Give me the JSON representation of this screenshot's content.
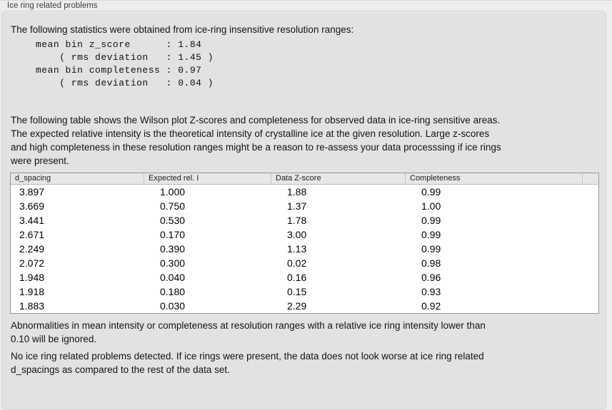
{
  "panel": {
    "title": "Ice ring related problems"
  },
  "colors": {
    "page_bg": "#ededed",
    "panel_bg": "#e2e2e2",
    "table_bg": "#ffffff",
    "table_border": "#979797",
    "header_bg": "#e7e7e7"
  },
  "sections": {
    "intro": "The following statistics were obtained from ice-ring insensitive resolution ranges:",
    "stats_lines": [
      "mean bin z_score      : 1.84",
      "    ( rms deviation   : 1.45 )",
      "mean bin completeness : 0.97",
      "    ( rms deviation   : 0.04 )"
    ],
    "table_intro_lines": [
      "The following table shows the Wilson plot Z-scores and completeness for observed data in ice-ring sensitive areas.",
      "The expected relative intensity is the theoretical intensity of crystalline ice at the given resolution. Large z-scores",
      "and high completeness in these resolution ranges might be a reason to re-assess your data processsing if ice rings",
      "were present."
    ],
    "note_ignore_lines": [
      "Abnormalities in mean intensity or completeness at resolution ranges with a relative ice ring intensity lower than",
      "0.10 will be ignored."
    ],
    "note_result_lines": [
      "No ice ring related problems detected. If ice rings were present, the data does not look worse at ice ring related",
      "d_spacings as compared to the rest of the data set."
    ]
  },
  "table": {
    "headers": [
      "d_spacing",
      "Expected rel. I",
      "Data Z-score",
      "Completeness",
      ""
    ],
    "rows": [
      [
        "3.897",
        "1.000",
        "1.88",
        "0.99"
      ],
      [
        "3.669",
        "0.750",
        "1.37",
        "1.00"
      ],
      [
        "3.441",
        "0.530",
        "1.78",
        "0.99"
      ],
      [
        "2.671",
        "0.170",
        "3.00",
        "0.99"
      ],
      [
        "2.249",
        "0.390",
        "1.13",
        "0.99"
      ],
      [
        "2.072",
        "0.300",
        "0.02",
        "0.98"
      ],
      [
        "1.948",
        "0.040",
        "0.16",
        "0.96"
      ],
      [
        "1.918",
        "0.180",
        "0.15",
        "0.93"
      ],
      [
        "1.883",
        "0.030",
        "2.29",
        "0.92"
      ]
    ]
  }
}
